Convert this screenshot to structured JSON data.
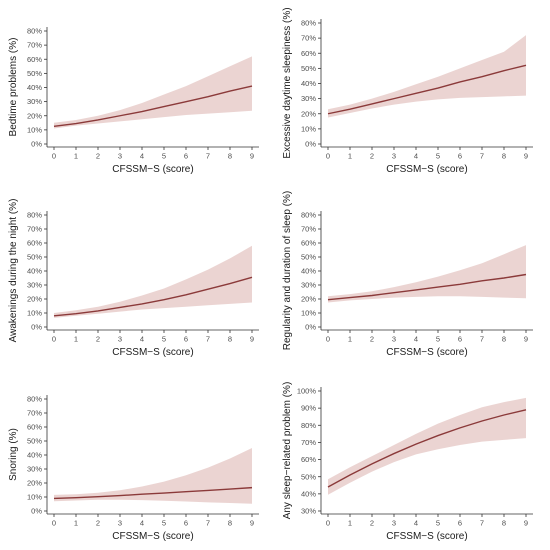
{
  "colors": {
    "line": "#8B3A3A",
    "band": "#E8CCCA"
  },
  "chart_data": [
    {
      "type": "line",
      "xlabel": "CFSSM−S (score)",
      "ylabel": "Bedtime problems (%)",
      "xlim": [
        0,
        9
      ],
      "ylim": [
        0,
        80
      ],
      "x_ticks": [
        "0",
        "1",
        "2",
        "3",
        "4",
        "5",
        "6",
        "7",
        "8",
        "9"
      ],
      "y_ticks": [
        "0%",
        "10%",
        "20%",
        "30%",
        "40%",
        "50%",
        "60%",
        "70%",
        "80%"
      ],
      "y_tick_values": [
        0,
        10,
        20,
        30,
        40,
        50,
        60,
        70,
        80
      ],
      "x": [
        0,
        1,
        2,
        3,
        4,
        5,
        6,
        7,
        8,
        9
      ],
      "estimate": [
        12.5,
        14.5,
        17,
        20,
        23,
        26.5,
        30,
        33.5,
        37.5,
        41
      ],
      "lower": [
        11,
        13,
        14.5,
        16,
        17.5,
        19,
        20.5,
        21.5,
        22.5,
        23.5
      ],
      "upper": [
        15,
        17,
        20,
        24,
        29,
        35,
        41,
        48,
        55,
        62
      ]
    },
    {
      "type": "line",
      "xlabel": "CFSSM−S (score)",
      "ylabel": "Excessive daytime sleepiness (%)",
      "xlim": [
        0,
        9
      ],
      "ylim": [
        0,
        80
      ],
      "x_ticks": [
        "0",
        "1",
        "2",
        "3",
        "4",
        "5",
        "6",
        "7",
        "8",
        "9"
      ],
      "y_ticks": [
        "0%",
        "10%",
        "20%",
        "30%",
        "40%",
        "50%",
        "60%",
        "70%",
        "80%"
      ],
      "y_tick_values": [
        0,
        10,
        20,
        30,
        40,
        50,
        60,
        70,
        80
      ],
      "x": [
        0,
        1,
        2,
        3,
        4,
        5,
        6,
        7,
        8,
        9
      ],
      "estimate": [
        20,
        23,
        26.5,
        30,
        33.5,
        37,
        41,
        44.5,
        48.5,
        52
      ],
      "lower": [
        17.5,
        20.5,
        23.5,
        26,
        28,
        29.5,
        30.5,
        31,
        31.5,
        32
      ],
      "upper": [
        23,
        26,
        30,
        34.5,
        39.5,
        44.5,
        50,
        55.5,
        61,
        72
      ]
    },
    {
      "type": "line",
      "xlabel": "CFSSM−S (score)",
      "ylabel": "Awakenings during the night (%)",
      "xlim": [
        0,
        9
      ],
      "ylim": [
        0,
        80
      ],
      "x_ticks": [
        "0",
        "1",
        "2",
        "3",
        "4",
        "5",
        "6",
        "7",
        "8",
        "9"
      ],
      "y_ticks": [
        "0%",
        "10%",
        "20%",
        "30%",
        "40%",
        "50%",
        "60%",
        "70%",
        "80%"
      ],
      "y_tick_values": [
        0,
        10,
        20,
        30,
        40,
        50,
        60,
        70,
        80
      ],
      "x": [
        0,
        1,
        2,
        3,
        4,
        5,
        6,
        7,
        8,
        9
      ],
      "estimate": [
        8,
        9.5,
        11.5,
        14,
        16.5,
        19.5,
        23,
        27,
        31,
        35.5
      ],
      "lower": [
        6.5,
        8,
        9.5,
        11,
        12.5,
        13.5,
        14.5,
        15.5,
        16.5,
        17.5
      ],
      "upper": [
        10,
        12,
        14.5,
        18,
        22.5,
        27.5,
        34,
        41,
        49,
        58
      ]
    },
    {
      "type": "line",
      "xlabel": "CFSSM−S (score)",
      "ylabel": "Regularity and duration of sleep (%)",
      "xlim": [
        0,
        9
      ],
      "ylim": [
        0,
        80
      ],
      "x_ticks": [
        "0",
        "1",
        "2",
        "3",
        "4",
        "5",
        "6",
        "7",
        "8",
        "9"
      ],
      "y_ticks": [
        "0%",
        "10%",
        "20%",
        "30%",
        "40%",
        "50%",
        "60%",
        "70%",
        "80%"
      ],
      "y_tick_values": [
        0,
        10,
        20,
        30,
        40,
        50,
        60,
        70,
        80
      ],
      "x": [
        0,
        1,
        2,
        3,
        4,
        5,
        6,
        7,
        8,
        9
      ],
      "estimate": [
        19.5,
        21,
        22.5,
        24.5,
        26.5,
        28.5,
        30.5,
        33,
        35,
        37.5
      ],
      "lower": [
        17.5,
        19,
        20,
        21,
        21.5,
        22,
        22,
        21.5,
        21,
        20.5
      ],
      "upper": [
        22,
        23.5,
        25.5,
        28.5,
        32,
        36,
        40.5,
        45.5,
        52,
        58.5
      ]
    },
    {
      "type": "line",
      "xlabel": "CFSSM−S (score)",
      "ylabel": "Snoring (%)",
      "xlim": [
        0,
        9
      ],
      "ylim": [
        0,
        80
      ],
      "x_ticks": [
        "0",
        "1",
        "2",
        "3",
        "4",
        "5",
        "6",
        "7",
        "8",
        "9"
      ],
      "y_ticks": [
        "0%",
        "10%",
        "20%",
        "30%",
        "40%",
        "50%",
        "60%",
        "70%",
        "80%"
      ],
      "y_tick_values": [
        0,
        10,
        20,
        30,
        40,
        50,
        60,
        70,
        80
      ],
      "x": [
        0,
        1,
        2,
        3,
        4,
        5,
        6,
        7,
        8,
        9
      ],
      "estimate": [
        9,
        9.5,
        10.2,
        11,
        12,
        12.8,
        13.8,
        14.7,
        15.7,
        16.7
      ],
      "lower": [
        7,
        7.5,
        8,
        8,
        7.8,
        7.3,
        6.8,
        6.2,
        5.7,
        5.2
      ],
      "upper": [
        11.5,
        12,
        13,
        14.8,
        17.5,
        21,
        25.5,
        31,
        37.5,
        45
      ]
    },
    {
      "type": "line",
      "xlabel": "CFSSM−S (score)",
      "ylabel": "Any sleep−related problem (%)",
      "xlim": [
        0,
        9
      ],
      "ylim": [
        30,
        100
      ],
      "x_ticks": [
        "0",
        "1",
        "2",
        "3",
        "4",
        "5",
        "6",
        "7",
        "8",
        "9"
      ],
      "y_ticks": [
        "30%",
        "40%",
        "50%",
        "60%",
        "70%",
        "80%",
        "90%",
        "100%"
      ],
      "y_tick_values": [
        30,
        40,
        50,
        60,
        70,
        80,
        90,
        100
      ],
      "x": [
        0,
        1,
        2,
        3,
        4,
        5,
        6,
        7,
        8,
        9
      ],
      "estimate": [
        44,
        51,
        57.5,
        63.5,
        69,
        74,
        78.5,
        82.5,
        86,
        89
      ],
      "lower": [
        39.5,
        46.5,
        53,
        58.5,
        63,
        66,
        68.5,
        70.5,
        71.5,
        72.5
      ],
      "upper": [
        48.5,
        55.5,
        62,
        68.5,
        75,
        81,
        86,
        90.5,
        93.5,
        96
      ]
    }
  ]
}
